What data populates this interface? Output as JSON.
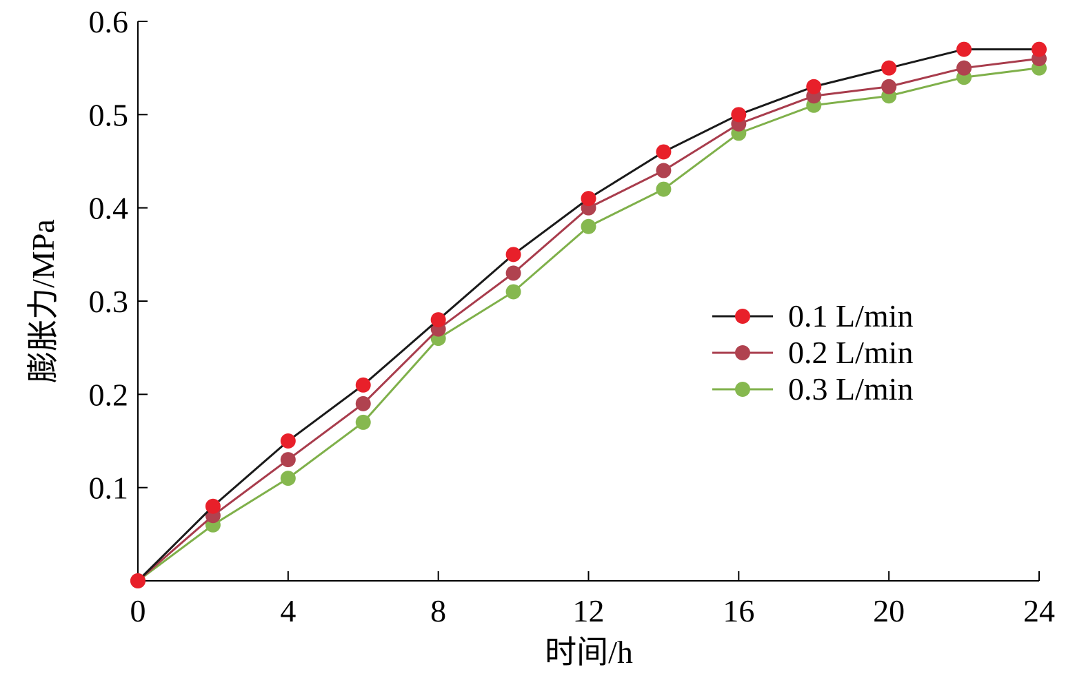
{
  "chart_data": {
    "type": "line",
    "title": "",
    "xlabel": "时间/h",
    "ylabel": "膨胀力/MPa",
    "xlim": [
      0,
      24
    ],
    "ylim": [
      0,
      0.6
    ],
    "x_ticks": [
      "0",
      "4",
      "8",
      "12",
      "16",
      "20",
      "24"
    ],
    "x_tick_values": [
      0,
      4,
      8,
      12,
      16,
      20,
      24
    ],
    "y_ticks": [
      "0.1",
      "0.2",
      "0.3",
      "0.4",
      "0.5",
      "0.6"
    ],
    "y_tick_values": [
      0.1,
      0.2,
      0.3,
      0.4,
      0.5,
      0.6
    ],
    "grid": false,
    "legend_position": "right",
    "x": [
      0,
      2,
      4,
      6,
      8,
      10,
      12,
      14,
      16,
      18,
      20,
      22,
      24
    ],
    "series": [
      {
        "name": "0.1 L/min",
        "line_color": "#1a1a1a",
        "marker_color": "#e8202a",
        "values": [
          0,
          0.08,
          0.15,
          0.21,
          0.28,
          0.35,
          0.41,
          0.46,
          0.5,
          0.53,
          0.55,
          0.57,
          0.57
        ]
      },
      {
        "name": "0.2 L/min",
        "line_color": "#a83c4c",
        "marker_color": "#b0424f",
        "values": [
          0,
          0.07,
          0.13,
          0.19,
          0.27,
          0.33,
          0.4,
          0.44,
          0.49,
          0.52,
          0.53,
          0.55,
          0.56
        ]
      },
      {
        "name": "0.3 L/min",
        "line_color": "#7fb04a",
        "marker_color": "#86b84f",
        "values": [
          0,
          0.06,
          0.11,
          0.17,
          0.26,
          0.31,
          0.38,
          0.42,
          0.48,
          0.51,
          0.52,
          0.54,
          0.55
        ]
      }
    ]
  }
}
